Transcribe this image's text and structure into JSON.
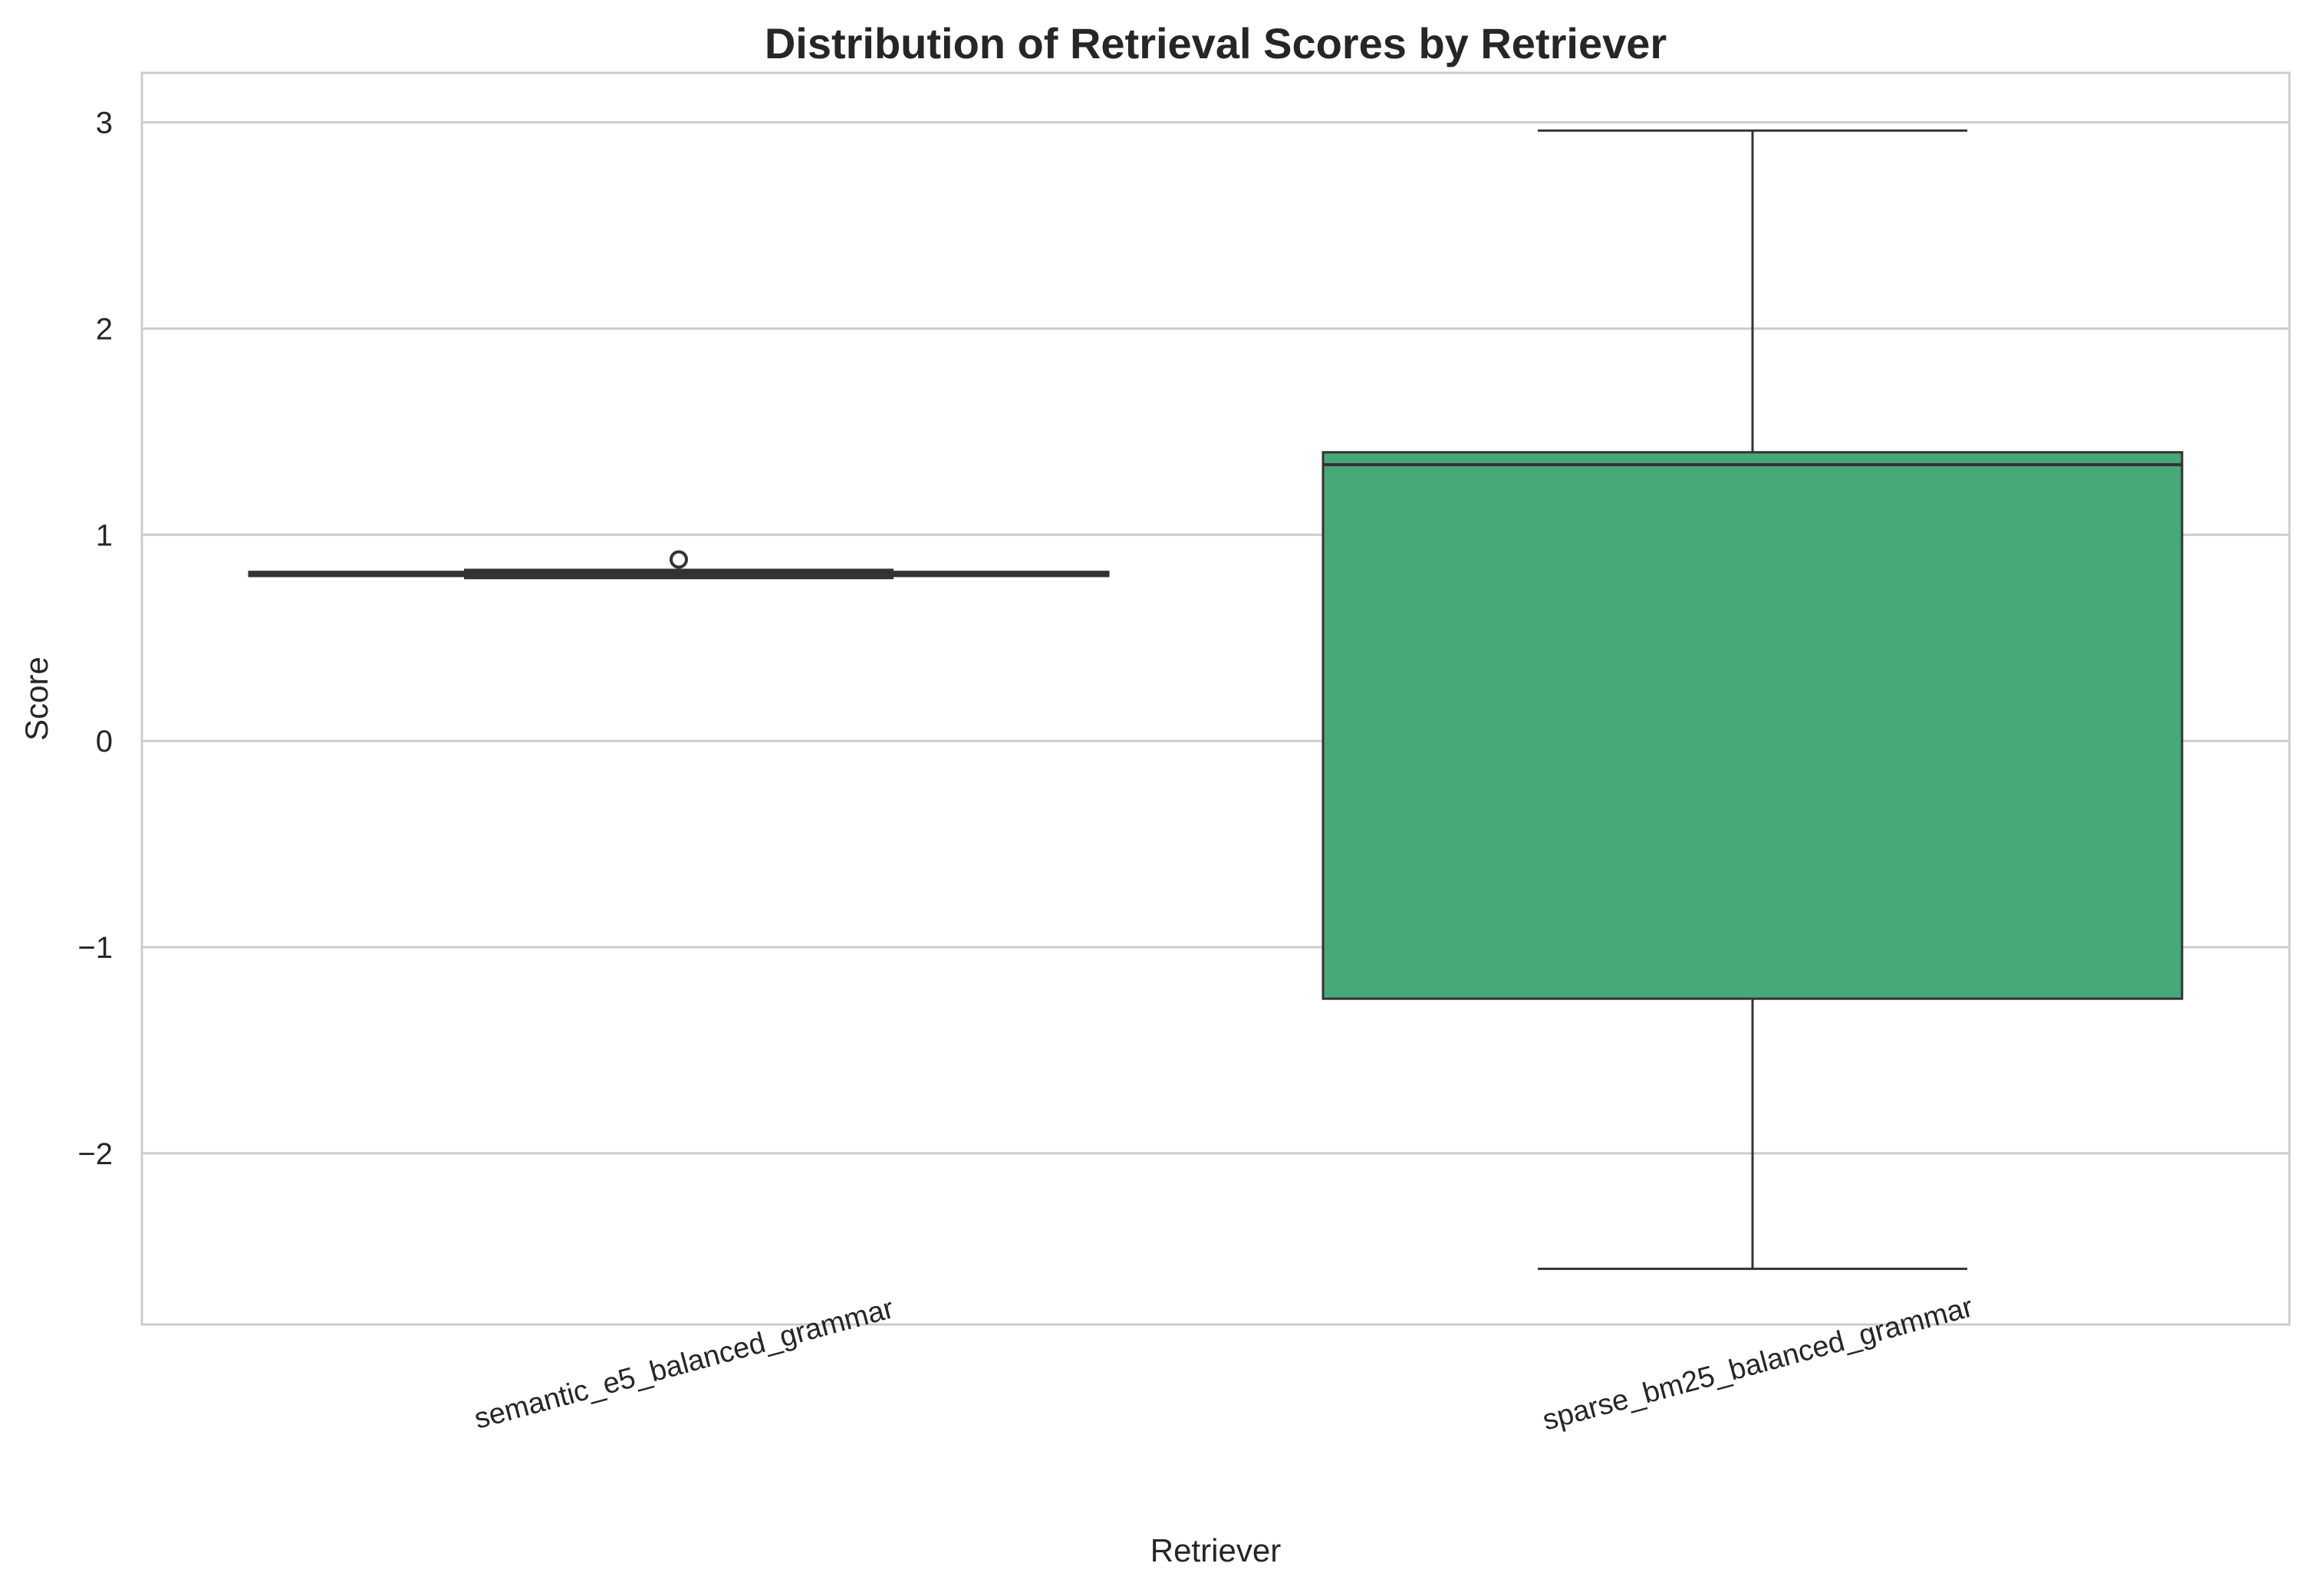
{
  "chart_data": {
    "type": "box",
    "title": "Distribution of Retrieval Scores by Retriever",
    "xlabel": "Retriever",
    "ylabel": "Score",
    "ylim": [
      -2.83,
      3.24
    ],
    "yticks": [
      -2,
      -1,
      0,
      1,
      2,
      3
    ],
    "grid": true,
    "categories": [
      "semantic_e5_balanced_grammar",
      "sparse_bm25_balanced_grammar"
    ],
    "boxes": [
      {
        "category": "semantic_e5_balanced_grammar",
        "whisker_low": 0.79,
        "q1": 0.8,
        "median": 0.81,
        "q3": 0.82,
        "whisker_high": 0.83,
        "outliers": [
          0.88
        ],
        "color": "#4c72b0"
      },
      {
        "category": "sparse_bm25_balanced_grammar",
        "whisker_low": -2.56,
        "q1": -1.25,
        "median": 1.34,
        "q3": 1.4,
        "whisker_high": 2.96,
        "outliers": [],
        "color": "#47a878"
      }
    ],
    "colors": {
      "grid": "#cccccc",
      "frame": "#cccccc",
      "line": "#333333"
    }
  }
}
